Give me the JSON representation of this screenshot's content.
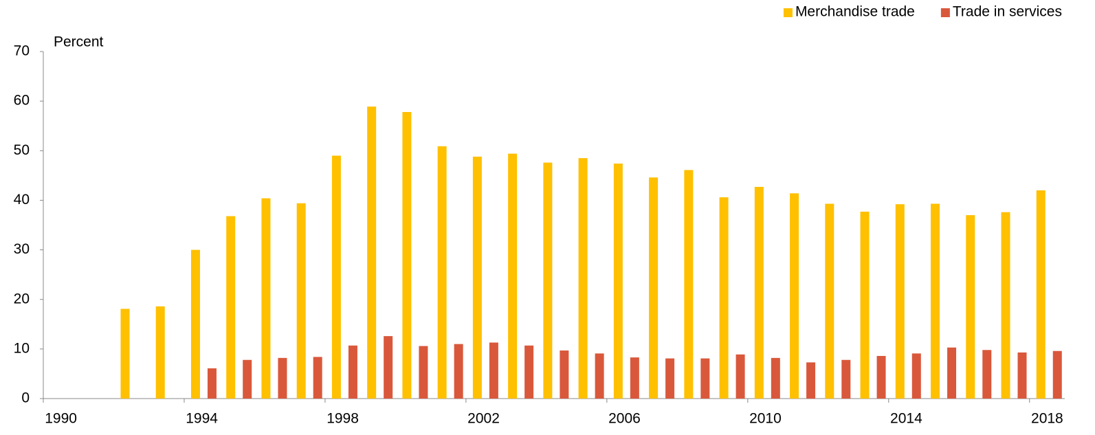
{
  "chart_data": {
    "type": "bar",
    "y_label": "Percent",
    "categories": [
      "1990",
      null,
      null,
      null,
      "1994",
      null,
      null,
      null,
      "1998",
      null,
      null,
      null,
      "2002",
      null,
      null,
      null,
      "2006",
      null,
      null,
      null,
      "2010",
      null,
      null,
      null,
      "2014",
      null,
      null,
      null,
      "2018"
    ],
    "series": [
      {
        "name": "Merchandise trade",
        "color": "#ffc000",
        "values": [
          null,
          null,
          18.1,
          18.6,
          30,
          36.8,
          40.4,
          39.4,
          49,
          58.9,
          57.8,
          50.9,
          48.8,
          49.4,
          47.6,
          48.5,
          47.4,
          44.6,
          46.1,
          40.6,
          42.7,
          41.4,
          39.3,
          37.7,
          39.2,
          39.3,
          37,
          37.6,
          42
        ]
      },
      {
        "name": "Trade in services",
        "color": "#d9583b",
        "values": [
          null,
          null,
          null,
          null,
          6.1,
          7.8,
          8.2,
          8.4,
          10.7,
          12.6,
          10.6,
          11,
          11.3,
          10.7,
          9.7,
          9.1,
          8.3,
          8.1,
          8.1,
          8.9,
          8.2,
          7.3,
          7.8,
          8.6,
          9.1,
          10.3,
          9.8,
          9.3,
          9.6
        ]
      }
    ],
    "ylim": [
      0,
      70
    ],
    "yticks": [
      0,
      10,
      20,
      30,
      40,
      50,
      60,
      70
    ],
    "legend": "top-right",
    "grid": false
  }
}
